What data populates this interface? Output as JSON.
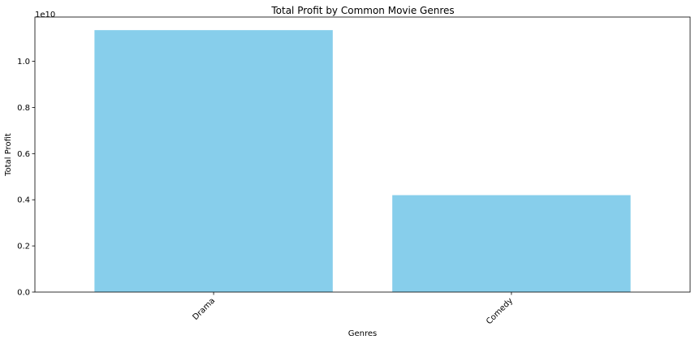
{
  "chart_data": {
    "type": "bar",
    "title": "Total Profit by Common Movie Genres",
    "xlabel": "Genres",
    "ylabel": "Total Profit",
    "categories": [
      "Drama",
      "Comedy"
    ],
    "values": [
      11350000000,
      4200000000
    ],
    "ylim": [
      0,
      11917500000
    ],
    "yticks": [
      0,
      2000000000,
      4000000000,
      6000000000,
      8000000000,
      10000000000
    ],
    "ytick_labels": [
      "0.0",
      "0.2",
      "0.4",
      "0.6",
      "0.8",
      "1.0"
    ],
    "y_offset_text": "1e10",
    "bar_color": "#87CEEB",
    "grid": false,
    "xtick_rotation_deg": 45
  }
}
